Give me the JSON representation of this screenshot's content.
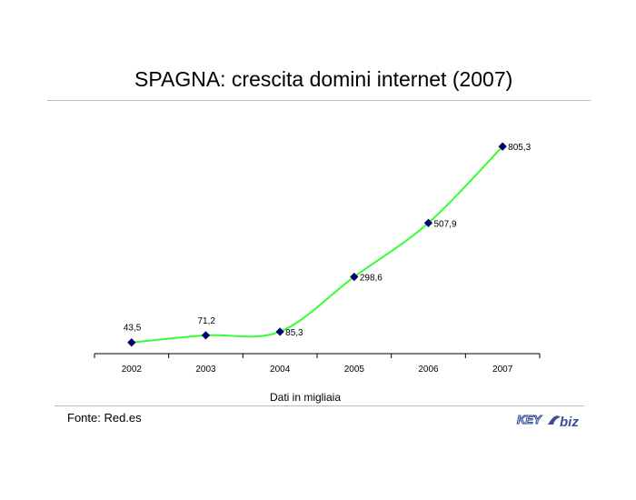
{
  "page": {
    "title": "SPAGNA: crescita domini internet  (2007)",
    "source": "Fonte: Red.es"
  },
  "logo": {
    "left": "KEY",
    "right": "biz"
  },
  "chart_data": {
    "type": "line",
    "title": "SPAGNA: crescita domini internet  (2007)",
    "xlabel": "Dati in migliaia",
    "ylabel": "",
    "categories": [
      "2002",
      "2003",
      "2004",
      "2005",
      "2006",
      "2007"
    ],
    "series": [
      {
        "values": [
          43.5,
          71.2,
          85.3,
          298.6,
          507.9,
          805.3
        ],
        "labels": [
          "43,5",
          "71,2",
          "85,3",
          "298,6",
          "507,9",
          "805,3"
        ]
      }
    ],
    "ylim": [
      0,
      1000
    ],
    "grid": false,
    "line_color": "#33ff33",
    "marker_color": "#000080"
  }
}
